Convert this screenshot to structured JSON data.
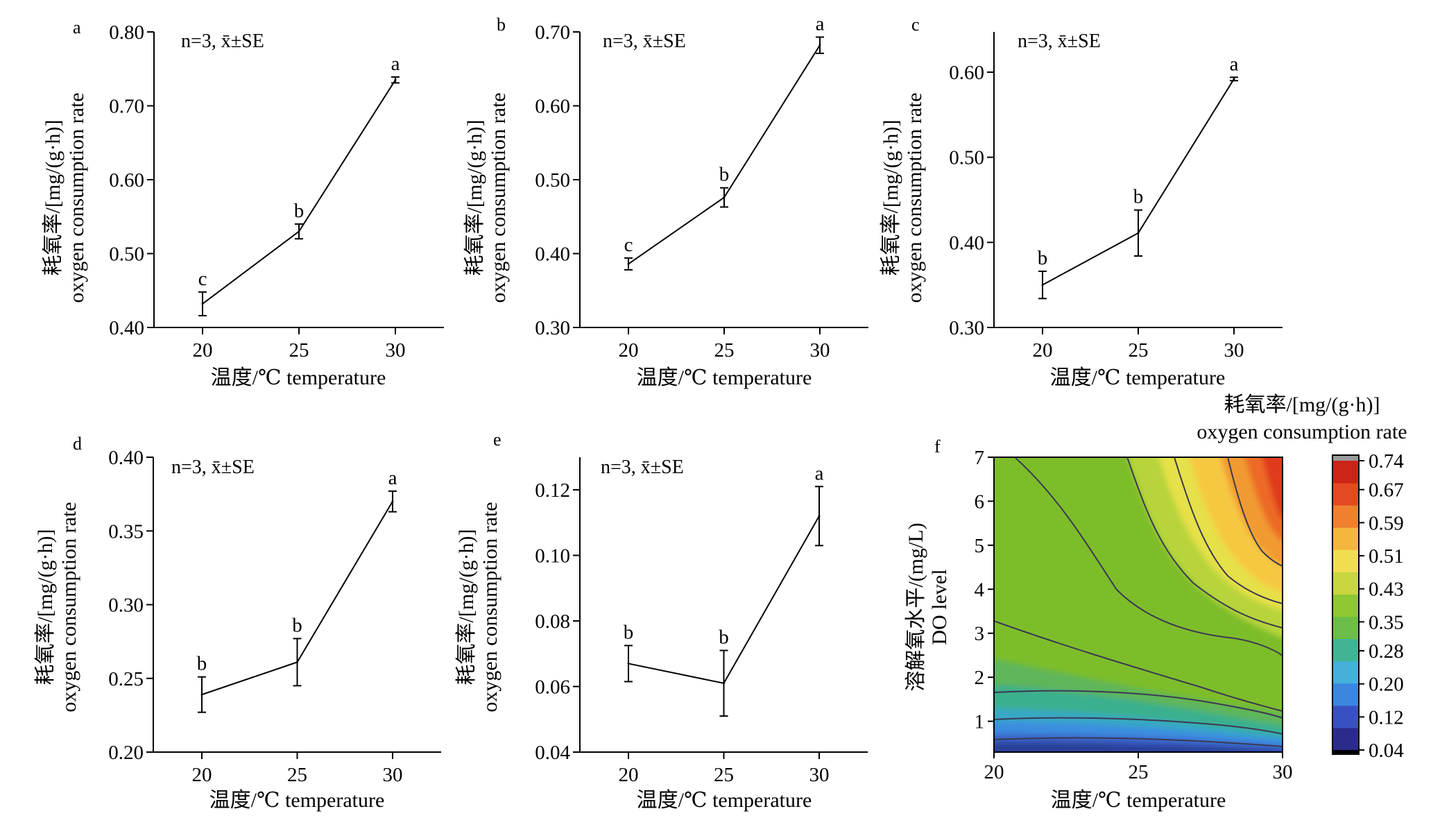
{
  "chart_data": [
    {
      "panel": "a",
      "type": "line",
      "annotation": "n=3, x̄±SE",
      "xlabel": "温度/℃ temperature",
      "ylabel_cn": "耗氧率/[mg/(g·h)]",
      "ylabel_en": "oxygen consumption rate",
      "x": [
        20,
        25,
        30
      ],
      "xticks": [
        "20",
        "25",
        "30"
      ],
      "values": [
        0.432,
        0.53,
        0.735
      ],
      "errors": [
        0.016,
        0.01,
        0.004
      ],
      "letters": [
        "c",
        "b",
        "a"
      ],
      "ylim": [
        0.4,
        0.8
      ],
      "yticks": [
        "0.40",
        "0.50",
        "0.60",
        "0.70",
        "0.80"
      ]
    },
    {
      "panel": "b",
      "type": "line",
      "annotation": "n=3, x̄±SE",
      "xlabel": "温度/℃ temperature",
      "ylabel_cn": "耗氧率/[mg/(g·h)]",
      "ylabel_en": "oxygen consumption rate",
      "x": [
        20,
        25,
        30
      ],
      "xticks": [
        "20",
        "25",
        "30"
      ],
      "values": [
        0.386,
        0.476,
        0.682
      ],
      "errors": [
        0.008,
        0.013,
        0.011
      ],
      "letters": [
        "c",
        "b",
        "a"
      ],
      "ylim": [
        0.3,
        0.7
      ],
      "yticks": [
        "0.30",
        "0.40",
        "0.50",
        "0.60",
        "0.70"
      ]
    },
    {
      "panel": "c",
      "type": "line",
      "annotation": "n=3, x̄±SE",
      "xlabel": "温度/℃ temperature",
      "ylabel_cn": "耗氧率/[mg/(g·h)]",
      "ylabel_en": "oxygen consumption rate",
      "x": [
        20,
        25,
        30
      ],
      "xticks": [
        "20",
        "25",
        "30"
      ],
      "values": [
        0.35,
        0.411,
        0.592
      ],
      "errors": [
        0.016,
        0.027,
        0.002
      ],
      "letters": [
        "b",
        "b",
        "a"
      ],
      "ylim": [
        0.3,
        0.6
      ],
      "yticks": [
        "0.30",
        "0.40",
        "0.50",
        "0.60"
      ]
    },
    {
      "panel": "d",
      "type": "line",
      "annotation": "n=3, x̄±SE",
      "xlabel": "温度/℃ temperature",
      "ylabel_cn": "耗氧率/[mg/(g·h)]",
      "ylabel_en": "oxygen consumption rate",
      "x": [
        20,
        25,
        30
      ],
      "xticks": [
        "20",
        "25",
        "30"
      ],
      "values": [
        0.239,
        0.261,
        0.37
      ],
      "errors": [
        0.012,
        0.016,
        0.007
      ],
      "letters": [
        "b",
        "b",
        "a"
      ],
      "ylim": [
        0.2,
        0.4
      ],
      "yticks": [
        "0.20",
        "0.25",
        "0.30",
        "0.35",
        "0.40"
      ]
    },
    {
      "panel": "e",
      "type": "line",
      "annotation": "n=3, x̄±SE",
      "xlabel": "温度/℃ temperature",
      "ylabel_cn": "耗氧率/[mg/(g·h)]",
      "ylabel_en": "oxygen consumption rate",
      "x": [
        20,
        25,
        30
      ],
      "xticks": [
        "20",
        "25",
        "30"
      ],
      "values": [
        0.067,
        0.061,
        0.112
      ],
      "errors": [
        0.0055,
        0.01,
        0.009
      ],
      "letters": [
        "b",
        "b",
        "a"
      ],
      "ylim": [
        0.04,
        0.13
      ],
      "yticks": [
        "0.04",
        "0.06",
        "0.08",
        "0.10",
        "0.12"
      ]
    },
    {
      "panel": "f",
      "type": "heatmap",
      "xlabel": "温度/℃ temperature",
      "ylabel_cn": "溶解氧水平/(mg/L)",
      "ylabel_en": "DO level",
      "xlim": [
        20,
        30
      ],
      "xticks": [
        "20",
        "25",
        "30"
      ],
      "ylim": [
        0.3,
        7
      ],
      "yticks": [
        "1",
        "2",
        "3",
        "4",
        "5",
        "6",
        "7"
      ],
      "colorbar_title_cn": "耗氧率/[mg/(g·h)]",
      "colorbar_title_en": "oxygen consumption rate",
      "colorbar_ticks": [
        "0.74",
        "0.67",
        "0.59",
        "0.51",
        "0.43",
        "0.35",
        "0.28",
        "0.20",
        "0.12",
        "0.04"
      ],
      "color_range": [
        0.04,
        0.74
      ]
    }
  ]
}
